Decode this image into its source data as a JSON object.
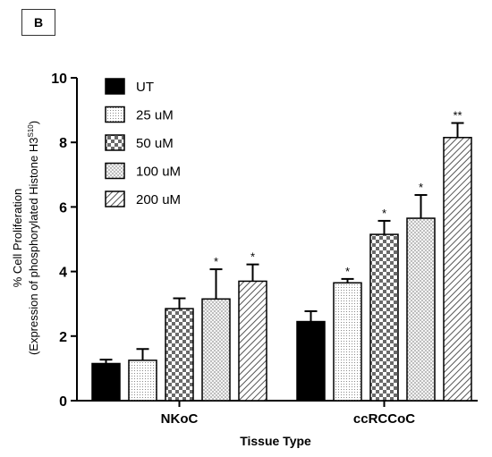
{
  "panel_label": "B",
  "chart_data": {
    "type": "bar",
    "title": "",
    "xlabel": "Tissue Type",
    "ylabel_line1": "% Cell Proliferation",
    "ylabel_line2_prefix": "(Expression of phosphorylated Histone H3",
    "ylabel_line2_superscript": "S10",
    "ylabel_line2_suffix": ")",
    "ylim": [
      0,
      10
    ],
    "yticks": [
      "0",
      "2",
      "4",
      "6",
      "8",
      "10"
    ],
    "categories": [
      "NKoC",
      "ccRCCoC"
    ],
    "legend_position": "top-left",
    "series": [
      {
        "name": "UT",
        "pattern": "solid",
        "values": [
          1.15,
          2.45
        ],
        "errors": [
          0.12,
          0.32
        ],
        "significance": [
          "",
          ""
        ]
      },
      {
        "name": "25 uM",
        "pattern": "dots",
        "values": [
          1.25,
          3.65
        ],
        "errors": [
          0.35,
          0.12
        ],
        "significance": [
          "",
          "*"
        ]
      },
      {
        "name": "50 uM",
        "pattern": "checker",
        "values": [
          2.85,
          5.15
        ],
        "errors": [
          0.32,
          0.42
        ],
        "significance": [
          "",
          "*"
        ]
      },
      {
        "name": "100 uM",
        "pattern": "crosshatch",
        "values": [
          3.15,
          5.65
        ],
        "errors": [
          0.92,
          0.72
        ],
        "significance": [
          "*",
          "*"
        ]
      },
      {
        "name": "200 uM",
        "pattern": "diagonal",
        "values": [
          3.7,
          8.15
        ],
        "errors": [
          0.52,
          0.45
        ],
        "significance": [
          "*",
          "**"
        ]
      }
    ]
  }
}
